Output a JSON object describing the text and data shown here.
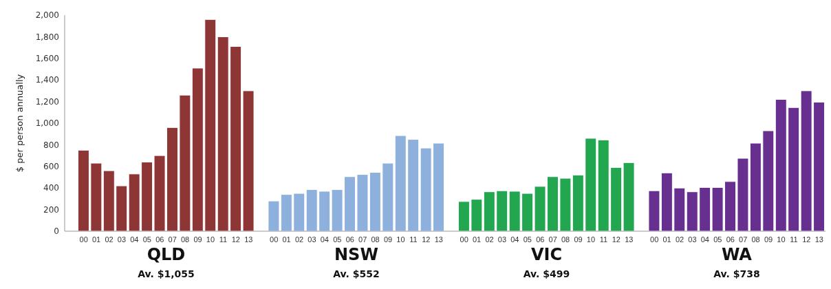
{
  "chart_data": {
    "type": "bar",
    "ylabel": "$ per person  annually",
    "categories": [
      null,
      "00",
      "01",
      "02",
      "03",
      "04",
      "05",
      "06",
      "07",
      "08",
      "09",
      "10",
      "11",
      "12",
      "13",
      null,
      "00",
      "01",
      "02",
      "03",
      "04",
      "05",
      "06",
      "07",
      "08",
      "09",
      "10",
      "11",
      "12",
      "13",
      null,
      "00",
      "01",
      "02",
      "03",
      "04",
      "05",
      "06",
      "07",
      "08",
      "09",
      "10",
      "11",
      "12",
      "13",
      null,
      "00",
      "01",
      "02",
      "03",
      "04",
      "05",
      "06",
      "07",
      "08",
      "09",
      "10",
      "11",
      "12",
      "13"
    ],
    "series": [
      {
        "name": "QLD",
        "color": "#8e3535",
        "values": [
          null,
          750,
          630,
          560,
          420,
          530,
          640,
          700,
          960,
          1260,
          1510,
          1960,
          1800,
          1710,
          1300,
          null,
          null,
          null,
          null,
          null,
          null,
          null,
          null,
          null,
          null,
          null,
          null,
          null,
          null,
          null,
          null,
          null,
          null,
          null,
          null,
          null,
          null,
          null,
          null,
          null,
          null,
          null,
          null,
          null,
          null,
          null,
          null,
          null,
          null,
          null,
          null,
          null,
          null,
          null,
          null,
          null,
          null,
          null,
          null,
          null
        ]
      },
      {
        "name": "NSW",
        "color": "#8eb0dc",
        "values": [
          null,
          null,
          null,
          null,
          null,
          null,
          null,
          null,
          null,
          null,
          null,
          null,
          null,
          null,
          null,
          null,
          280,
          340,
          350,
          385,
          370,
          385,
          505,
          525,
          545,
          630,
          885,
          850,
          770,
          815,
          null,
          null,
          null,
          null,
          null,
          null,
          null,
          null,
          null,
          null,
          null,
          null,
          null,
          null,
          null,
          null,
          null,
          null,
          null,
          null,
          null,
          null,
          null,
          null,
          null,
          null,
          null,
          null,
          null,
          null
        ]
      },
      {
        "name": "VIC",
        "color": "#23a650",
        "values": [
          null,
          null,
          null,
          null,
          null,
          null,
          null,
          null,
          null,
          null,
          null,
          null,
          null,
          null,
          null,
          null,
          null,
          null,
          null,
          null,
          null,
          null,
          null,
          null,
          null,
          null,
          null,
          null,
          null,
          null,
          null,
          275,
          295,
          365,
          375,
          370,
          350,
          415,
          505,
          490,
          520,
          860,
          845,
          590,
          635,
          null,
          null,
          null,
          null,
          null,
          null,
          null,
          null,
          null,
          null,
          null,
          null,
          null,
          null,
          null
        ]
      },
      {
        "name": "WA",
        "color": "#673090",
        "values": [
          null,
          null,
          null,
          null,
          null,
          null,
          null,
          null,
          null,
          null,
          null,
          null,
          null,
          null,
          null,
          null,
          null,
          null,
          null,
          null,
          null,
          null,
          null,
          null,
          null,
          null,
          null,
          null,
          null,
          null,
          null,
          null,
          null,
          null,
          null,
          null,
          null,
          null,
          null,
          null,
          null,
          null,
          null,
          null,
          null,
          null,
          375,
          540,
          400,
          365,
          405,
          405,
          460,
          675,
          815,
          930,
          1220,
          1145,
          1300,
          1195
        ]
      }
    ],
    "stacked": true,
    "annotations": [
      "Av. $1,055",
      "Av. $552",
      "Av. $499",
      "Av. $738"
    ],
    "ylim": [
      0,
      2000
    ],
    "yticks": [
      0,
      200,
      400,
      600,
      800,
      {
        "value": 1000,
        "label": "1,000"
      },
      {
        "value": 1200,
        "label": "1,200"
      },
      {
        "value": 1400,
        "label": "1,400"
      },
      {
        "value": 1600,
        "label": "1,600"
      },
      {
        "value": 1800,
        "label": "1,800"
      },
      {
        "value": 2000,
        "label": "2,000"
      }
    ],
    "grid": false,
    "legend": false
  }
}
